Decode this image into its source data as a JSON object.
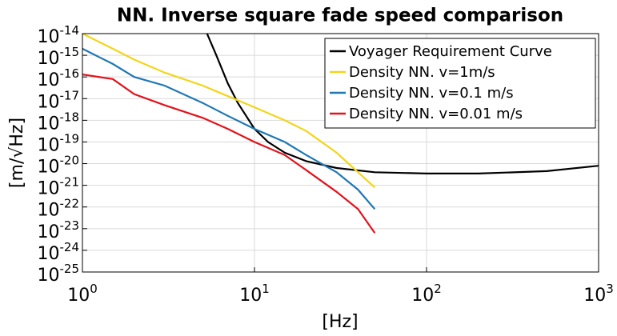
{
  "chart_data": {
    "type": "line",
    "title": "NN. Inverse square fade speed comparison",
    "xlabel": "[Hz]",
    "ylabel": "[m/√Hz]",
    "xscale": "log",
    "yscale": "log",
    "grid": true,
    "legend": "upper right",
    "xlim": [
      1,
      1000
    ],
    "xticks": [
      {
        "value": 1,
        "label": "10^0"
      },
      {
        "value": 10,
        "label": "10^1"
      },
      {
        "value": 100,
        "label": "10^2"
      },
      {
        "value": 1000,
        "label": "10^3"
      }
    ],
    "ylim": [
      1e-25,
      1e-14
    ],
    "yticks": [
      {
        "value": 1e-25,
        "label": "10^-25"
      },
      {
        "value": 1e-24,
        "label": "10^-24"
      },
      {
        "value": 1e-23,
        "label": "10^-23"
      },
      {
        "value": 1e-22,
        "label": "10^-22"
      },
      {
        "value": 1e-21,
        "label": "10^-21"
      },
      {
        "value": 1e-20,
        "label": "10^-20"
      },
      {
        "value": 1e-19,
        "label": "10^-19"
      },
      {
        "value": 1e-18,
        "label": "10^-18"
      },
      {
        "value": 1e-17,
        "label": "10^-17"
      },
      {
        "value": 1e-16,
        "label": "10^-16"
      },
      {
        "value": 1e-15,
        "label": "10^-15"
      },
      {
        "value": 1e-14,
        "label": "10^-14"
      }
    ],
    "series": [
      {
        "name": "Voyager Requirement Curve",
        "color": "#000000",
        "x": [
          5.3,
          6,
          7,
          8,
          10,
          12,
          15,
          20,
          30,
          50,
          100,
          200,
          500,
          1000
        ],
        "values": [
          1e-14,
          1e-15,
          5e-17,
          6.3e-18,
          4e-19,
          1e-19,
          3.2e-20,
          1.3e-20,
          6.3e-21,
          4e-21,
          3.5e-21,
          3.5e-21,
          4.5e-21,
          8e-21
        ]
      },
      {
        "name": "Density NN. v=1m/s",
        "color": "#f2d51a",
        "x": [
          1,
          1.5,
          2,
          3,
          5,
          7,
          10,
          15,
          20,
          30,
          40,
          50
        ],
        "values": [
          1e-14,
          2e-15,
          6.3e-16,
          1.6e-16,
          4e-17,
          1.3e-17,
          4e-18,
          1e-18,
          3.2e-19,
          3.2e-20,
          4e-21,
          8e-22
        ]
      },
      {
        "name": "Density NN. v=0.1 m/s",
        "color": "#1f77b4",
        "x": [
          1,
          1.5,
          2,
          3,
          5,
          7,
          10,
          15,
          20,
          30,
          40,
          50
        ],
        "values": [
          2e-15,
          4e-16,
          1e-16,
          4e-17,
          6.3e-18,
          1.6e-18,
          4e-19,
          1e-19,
          2.5e-20,
          4e-21,
          6.3e-22,
          8e-23
        ]
      },
      {
        "name": "Density NN. v=0.01 m/s",
        "color": "#e3121b",
        "x": [
          1,
          1.5,
          2,
          3,
          5,
          7,
          10,
          15,
          20,
          30,
          40,
          50
        ],
        "values": [
          1.3e-16,
          8e-17,
          1.6e-17,
          5e-18,
          1.3e-18,
          4e-19,
          1e-19,
          2.5e-20,
          5e-21,
          5e-22,
          8e-23,
          6.3e-24
        ]
      }
    ]
  }
}
